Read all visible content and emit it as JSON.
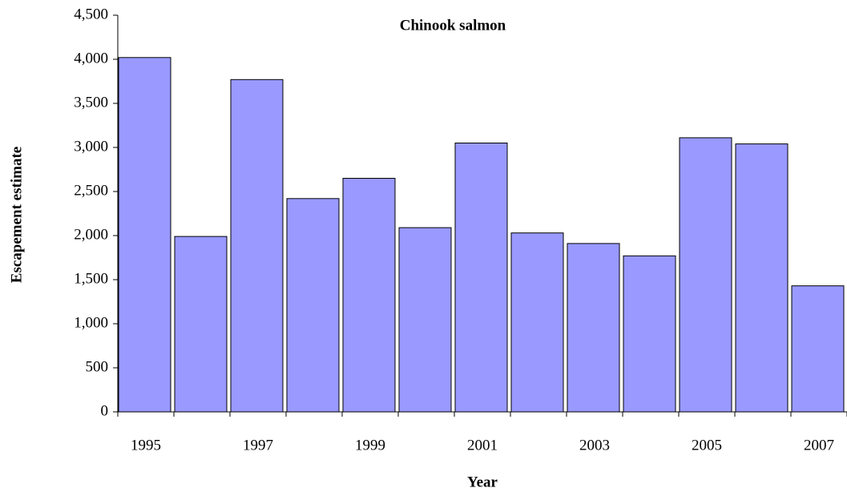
{
  "chart_data": {
    "type": "bar",
    "title": "Chinook salmon",
    "x_label": "Year",
    "y_label": "Escapement estimate",
    "categories": [
      "1995",
      null,
      "1997",
      null,
      "1999",
      null,
      "2001",
      null,
      "2003",
      null,
      "2005",
      null,
      "2007"
    ],
    "values": [
      4020,
      1990,
      3770,
      2420,
      2650,
      2090,
      3050,
      2030,
      1910,
      1770,
      3110,
      3040,
      1430
    ],
    "color": "#9999ff",
    "ylim": [
      0,
      4500
    ],
    "yticks": [
      0,
      500,
      {
        "value": 1000,
        "label": "1,000"
      },
      {
        "value": 1500,
        "label": "1,500"
      },
      {
        "value": 2000,
        "label": "2,000"
      },
      {
        "value": 2500,
        "label": "2,500"
      },
      {
        "value": 3000,
        "label": "3,000"
      },
      {
        "value": 3500,
        "label": "3,500"
      },
      {
        "value": 4000,
        "label": "4,000"
      },
      {
        "value": 4500,
        "label": "4,500"
      }
    ],
    "grid": false
  }
}
